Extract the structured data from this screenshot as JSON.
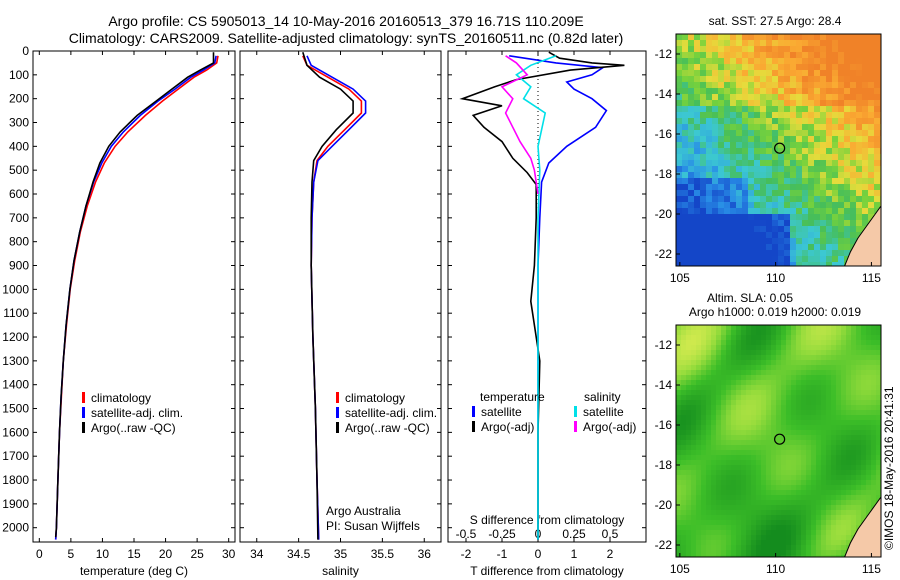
{
  "header": {
    "title_line1": "Argo profile: CS 5905013_14 10-May-2016 20160513_379 16.71S 110.209E",
    "title_line2": "Climatology: CARS2009. Satellite-adjusted climatology: synTS_20160511.nc (0.82d later)"
  },
  "colors": {
    "climatology": "#ff0000",
    "satellite": "#0000ff",
    "argo": "#000000",
    "salinity_satellite": "#00e0e8",
    "salinity_argo": "#ff00ff"
  },
  "chart_data": [
    {
      "type": "line",
      "id": "temperature",
      "xlabel": "temperature (deg C)",
      "ylabel": "",
      "xlim": [
        -1,
        31
      ],
      "ylim": [
        2060,
        0
      ],
      "x_ticks": [
        0,
        5,
        10,
        15,
        20,
        25,
        30
      ],
      "y_ticks": [
        0,
        100,
        200,
        300,
        400,
        500,
        600,
        700,
        800,
        900,
        1000,
        1100,
        1200,
        1300,
        1400,
        1500,
        1600,
        1700,
        1800,
        1900,
        2000
      ],
      "legend": [
        "climatology",
        "satellite-adj. clim.",
        "Argo(..raw -QC)"
      ],
      "series": [
        {
          "name": "climatology",
          "points": [
            [
              28.3,
              20
            ],
            [
              28.1,
              50
            ],
            [
              26.5,
              80
            ],
            [
              24.5,
              110
            ],
            [
              22,
              160
            ],
            [
              19.5,
              210
            ],
            [
              16.8,
              270
            ],
            [
              14,
              340
            ],
            [
              12,
              400
            ],
            [
              10.3,
              470
            ],
            [
              8.9,
              550
            ],
            [
              7.6,
              650
            ],
            [
              6.5,
              760
            ],
            [
              5.6,
              880
            ],
            [
              4.9,
              1000
            ],
            [
              4.3,
              1150
            ],
            [
              3.8,
              1300
            ],
            [
              3.5,
              1450
            ],
            [
              3.2,
              1600
            ],
            [
              2.95,
              1800
            ],
            [
              2.7,
              2000
            ],
            [
              2.6,
              2050
            ]
          ]
        },
        {
          "name": "satellite-adj. clim.",
          "points": [
            [
              28,
              20
            ],
            [
              27.8,
              50
            ],
            [
              26,
              80
            ],
            [
              24,
              110
            ],
            [
              21.5,
              160
            ],
            [
              18.8,
              210
            ],
            [
              16,
              270
            ],
            [
              13.3,
              340
            ],
            [
              11.4,
              400
            ],
            [
              9.9,
              470
            ],
            [
              8.6,
              550
            ],
            [
              7.4,
              650
            ],
            [
              6.4,
              760
            ],
            [
              5.5,
              880
            ],
            [
              4.85,
              1000
            ],
            [
              4.25,
              1150
            ],
            [
              3.8,
              1300
            ],
            [
              3.45,
              1450
            ],
            [
              3.2,
              1600
            ],
            [
              2.95,
              1800
            ],
            [
              2.7,
              2000
            ],
            [
              2.6,
              2050
            ]
          ]
        },
        {
          "name": "Argo(..raw -QC)",
          "points": [
            [
              27.6,
              5
            ],
            [
              27.6,
              50
            ],
            [
              25.5,
              80
            ],
            [
              23.5,
              110
            ],
            [
              21,
              160
            ],
            [
              18.5,
              210
            ],
            [
              15.5,
              270
            ],
            [
              12.8,
              340
            ],
            [
              11,
              400
            ],
            [
              9.6,
              470
            ],
            [
              8.5,
              550
            ],
            [
              7.4,
              650
            ],
            [
              6.4,
              760
            ],
            [
              5.5,
              880
            ],
            [
              4.85,
              1000
            ],
            [
              4.25,
              1150
            ],
            [
              3.8,
              1300
            ],
            [
              3.45,
              1450
            ],
            [
              3.2,
              1600
            ],
            [
              2.95,
              1800
            ],
            [
              2.7,
              2000
            ],
            [
              2.6,
              2040
            ]
          ]
        }
      ]
    },
    {
      "type": "line",
      "id": "salinity",
      "xlabel": "salinity",
      "xlim": [
        33.8,
        36.2
      ],
      "ylim": [
        2060,
        0
      ],
      "x_ticks": [
        34,
        34.5,
        35,
        35.5,
        36
      ],
      "legend": [
        "climatology",
        "satellite-adj. clim.",
        "Argo(..raw -QC)"
      ],
      "annotation": [
        "Argo Australia",
        "PI: Susan Wijffels"
      ],
      "series": [
        {
          "name": "climatology",
          "points": [
            [
              34.55,
              20
            ],
            [
              34.6,
              60
            ],
            [
              34.85,
              110
            ],
            [
              35.1,
              160
            ],
            [
              35.25,
              210
            ],
            [
              35.25,
              260
            ],
            [
              35.05,
              330
            ],
            [
              34.85,
              400
            ],
            [
              34.72,
              460
            ],
            [
              34.68,
              550
            ],
            [
              34.66,
              700
            ],
            [
              34.65,
              900
            ],
            [
              34.67,
              1200
            ],
            [
              34.7,
              1500
            ],
            [
              34.72,
              1800
            ],
            [
              34.74,
              2050
            ]
          ]
        },
        {
          "name": "satellite-adj. clim.",
          "points": [
            [
              34.6,
              20
            ],
            [
              34.65,
              60
            ],
            [
              34.9,
              110
            ],
            [
              35.15,
              160
            ],
            [
              35.3,
              210
            ],
            [
              35.3,
              260
            ],
            [
              35.1,
              330
            ],
            [
              34.9,
              400
            ],
            [
              34.73,
              460
            ],
            [
              34.68,
              550
            ],
            [
              34.66,
              700
            ],
            [
              34.65,
              900
            ],
            [
              34.67,
              1200
            ],
            [
              34.7,
              1500
            ],
            [
              34.72,
              1800
            ],
            [
              34.74,
              2050
            ]
          ]
        },
        {
          "name": "Argo(..raw -QC)",
          "points": [
            [
              34.55,
              5
            ],
            [
              34.6,
              60
            ],
            [
              34.75,
              110
            ],
            [
              35.0,
              160
            ],
            [
              35.15,
              210
            ],
            [
              35.15,
              260
            ],
            [
              34.95,
              330
            ],
            [
              34.78,
              400
            ],
            [
              34.68,
              460
            ],
            [
              34.66,
              550
            ],
            [
              34.65,
              700
            ],
            [
              34.65,
              900
            ],
            [
              34.67,
              1200
            ],
            [
              34.7,
              1500
            ],
            [
              34.72,
              1800
            ],
            [
              34.73,
              2050
            ]
          ]
        }
      ]
    },
    {
      "type": "line",
      "id": "difference",
      "xlabel": "T difference from climatology",
      "xlabel_top": "S difference from climatology",
      "xlim": [
        -2.5,
        3
      ],
      "ylim": [
        2060,
        0
      ],
      "x_ticks_bottom": [
        -2,
        -1,
        0,
        1,
        2
      ],
      "x_ticks_top": [
        "-0.5",
        "-0.25",
        "0",
        "0.25",
        "0.5"
      ],
      "x_ticks_top_pos": [
        -2,
        -1,
        0,
        1,
        2
      ],
      "legend_temperature_title": "temperature",
      "legend_salinity_title": "salinity",
      "legend_temperature": [
        "satellite",
        "Argo(-adj)"
      ],
      "legend_salinity": [
        "satellite",
        "Argo(-adj)"
      ],
      "series": [
        {
          "name": "satellite",
          "group": "temperature",
          "points": [
            [
              -0.8,
              20
            ],
            [
              0.5,
              50
            ],
            [
              1.8,
              70
            ],
            [
              1.5,
              100
            ],
            [
              0.8,
              130
            ],
            [
              1.0,
              160
            ],
            [
              1.5,
              200
            ],
            [
              1.9,
              250
            ],
            [
              1.6,
              320
            ],
            [
              0.8,
              400
            ],
            [
              0.3,
              470
            ],
            [
              0.1,
              550
            ],
            [
              0.05,
              700
            ],
            [
              0,
              900
            ],
            [
              0,
              1200
            ],
            [
              0,
              1600
            ],
            [
              0,
              2050
            ]
          ]
        },
        {
          "name": "Argo(-adj)",
          "group": "temperature",
          "points": [
            [
              0.3,
              5
            ],
            [
              0.6,
              30
            ],
            [
              1.5,
              50
            ],
            [
              2.4,
              60
            ],
            [
              0.9,
              80
            ],
            [
              -0.6,
              120
            ],
            [
              -1.2,
              150
            ],
            [
              -2.1,
              200
            ],
            [
              -1.0,
              230
            ],
            [
              -1.8,
              270
            ],
            [
              -1.5,
              320
            ],
            [
              -1.0,
              380
            ],
            [
              -0.7,
              450
            ],
            [
              -0.3,
              510
            ],
            [
              -0.05,
              560
            ],
            [
              -0.05,
              700
            ],
            [
              -0.1,
              900
            ],
            [
              -0.2,
              1050
            ],
            [
              0.05,
              1300
            ],
            [
              0,
              1600
            ],
            [
              0,
              2050
            ]
          ]
        },
        {
          "name": "satellite",
          "group": "salinity",
          "points": [
            [
              0.5,
              20
            ],
            [
              -0.2,
              60
            ],
            [
              -0.6,
              100
            ],
            [
              -0.2,
              150
            ],
            [
              -0.4,
              200
            ],
            [
              0.2,
              260
            ],
            [
              0.1,
              330
            ],
            [
              0,
              400
            ],
            [
              0.05,
              500
            ],
            [
              0,
              700
            ],
            [
              0,
              1200
            ],
            [
              0,
              2050
            ]
          ]
        },
        {
          "name": "Argo(-adj)",
          "group": "salinity",
          "points": [
            [
              -0.9,
              20
            ],
            [
              -0.6,
              50
            ],
            [
              -0.3,
              100
            ],
            [
              -1.0,
              150
            ],
            [
              -0.7,
              200
            ],
            [
              -0.9,
              260
            ],
            [
              -0.7,
              320
            ],
            [
              -0.5,
              380
            ],
            [
              -0.2,
              450
            ],
            [
              -0.1,
              500
            ],
            [
              0,
              600
            ]
          ]
        }
      ]
    },
    {
      "type": "heatmap",
      "id": "sst_map",
      "title": "sat. SST: 27.5  Argo: 28.4",
      "xlim": [
        104.8,
        115.5
      ],
      "ylim": [
        -22.6,
        -11
      ],
      "x_ticks": [
        105,
        110,
        115
      ],
      "y_ticks": [
        -12,
        -14,
        -16,
        -18,
        -20,
        -22
      ],
      "marker": [
        110.209,
        -16.71
      ]
    },
    {
      "type": "heatmap",
      "id": "sla_map",
      "title_line1": "Altim. SLA: 0.05",
      "title_line2": "Argo h1000: 0.019  h2000: 0.019",
      "xlim": [
        104.8,
        115.5
      ],
      "ylim": [
        -22.6,
        -11
      ],
      "x_ticks": [
        105,
        110,
        115
      ],
      "y_ticks": [
        -12,
        -14,
        -16,
        -18,
        -20,
        -22
      ],
      "marker": [
        110.209,
        -16.71
      ]
    }
  ],
  "footer": {
    "credit": "©IMOS 18-May-2016 20:41:31"
  }
}
